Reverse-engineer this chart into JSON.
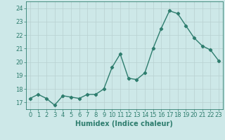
{
  "x": [
    0,
    1,
    2,
    3,
    4,
    5,
    6,
    7,
    8,
    9,
    10,
    11,
    12,
    13,
    14,
    15,
    16,
    17,
    18,
    19,
    20,
    21,
    22,
    23
  ],
  "y": [
    17.3,
    17.6,
    17.3,
    16.8,
    17.5,
    17.4,
    17.3,
    17.6,
    17.6,
    18.0,
    19.6,
    20.6,
    18.8,
    18.7,
    19.2,
    21.0,
    22.5,
    23.8,
    23.6,
    22.7,
    21.8,
    21.2,
    20.9,
    20.1
  ],
  "line_color": "#2e7d6e",
  "marker": "D",
  "marker_size": 2.2,
  "linewidth": 1.0,
  "bg_color": "#cde8e8",
  "grid_color": "#b8d0d0",
  "xlabel": "Humidex (Indice chaleur)",
  "xlim": [
    -0.5,
    23.5
  ],
  "ylim": [
    16.5,
    24.5
  ],
  "yticks": [
    17,
    18,
    19,
    20,
    21,
    22,
    23,
    24
  ],
  "xticks": [
    0,
    1,
    2,
    3,
    4,
    5,
    6,
    7,
    8,
    9,
    10,
    11,
    12,
    13,
    14,
    15,
    16,
    17,
    18,
    19,
    20,
    21,
    22,
    23
  ],
  "tick_color": "#2e7d6e",
  "label_fontsize": 6.5,
  "tick_fontsize": 6.0,
  "xlabel_fontsize": 7.0
}
